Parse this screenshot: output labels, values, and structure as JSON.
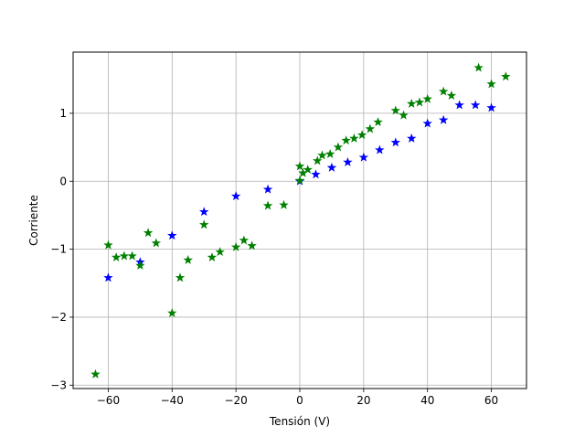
{
  "chart_data": {
    "type": "scatter",
    "xlabel": "Tensión (V)",
    "ylabel": "Corriente",
    "xlim": [
      -71,
      71
    ],
    "ylim": [
      -3.05,
      1.9
    ],
    "xticks": [
      -60,
      -40,
      -20,
      0,
      20,
      40,
      60
    ],
    "xtick_labels": [
      "−60",
      "−40",
      "−20",
      "0",
      "20",
      "40",
      "60"
    ],
    "yticks": [
      -3,
      -2,
      -1,
      0,
      1
    ],
    "ytick_labels": [
      "−3",
      "−2",
      "−1",
      "0",
      "1"
    ],
    "grid": true,
    "marker": "star",
    "series": [
      {
        "color": "#0000ff",
        "points": [
          [
            -60,
            -1.42
          ],
          [
            -50,
            -1.19
          ],
          [
            -40,
            -0.8
          ],
          [
            -30,
            -0.45
          ],
          [
            -20,
            -0.22
          ],
          [
            -10,
            -0.12
          ],
          [
            0,
            0.0
          ],
          [
            5,
            0.1
          ],
          [
            10,
            0.2
          ],
          [
            15,
            0.28
          ],
          [
            20,
            0.35
          ],
          [
            25,
            0.46
          ],
          [
            30,
            0.57
          ],
          [
            35,
            0.63
          ],
          [
            40,
            0.85
          ],
          [
            45,
            0.9
          ],
          [
            50,
            1.12
          ],
          [
            55,
            1.12
          ],
          [
            60,
            1.08
          ]
        ]
      },
      {
        "color": "#008000",
        "points": [
          [
            -64,
            -2.84
          ],
          [
            -60,
            -0.94
          ],
          [
            -57.5,
            -1.12
          ],
          [
            -55,
            -1.1
          ],
          [
            -52.5,
            -1.1
          ],
          [
            -50,
            -1.24
          ],
          [
            -47.5,
            -0.76
          ],
          [
            -45,
            -0.91
          ],
          [
            -40,
            -1.94
          ],
          [
            -37.5,
            -1.42
          ],
          [
            -35,
            -1.16
          ],
          [
            -30,
            -0.64
          ],
          [
            -27.5,
            -1.12
          ],
          [
            -25,
            -1.04
          ],
          [
            -20,
            -0.97
          ],
          [
            -17.5,
            -0.87
          ],
          [
            -15,
            -0.95
          ],
          [
            -10,
            -0.36
          ],
          [
            -5,
            -0.35
          ],
          [
            0,
            0.22
          ],
          [
            0,
            0.01
          ],
          [
            1,
            0.12
          ],
          [
            2.5,
            0.17
          ],
          [
            5.5,
            0.3
          ],
          [
            7,
            0.38
          ],
          [
            9.5,
            0.4
          ],
          [
            12,
            0.5
          ],
          [
            14.5,
            0.6
          ],
          [
            17,
            0.63
          ],
          [
            19.5,
            0.68
          ],
          [
            22,
            0.77
          ],
          [
            24.5,
            0.87
          ],
          [
            30,
            1.04
          ],
          [
            32.5,
            0.97
          ],
          [
            35,
            1.14
          ],
          [
            37.5,
            1.16
          ],
          [
            40,
            1.21
          ],
          [
            45,
            1.32
          ],
          [
            47.5,
            1.26
          ],
          [
            56,
            1.67
          ],
          [
            60,
            1.43
          ],
          [
            64.5,
            1.54
          ]
        ]
      }
    ]
  }
}
